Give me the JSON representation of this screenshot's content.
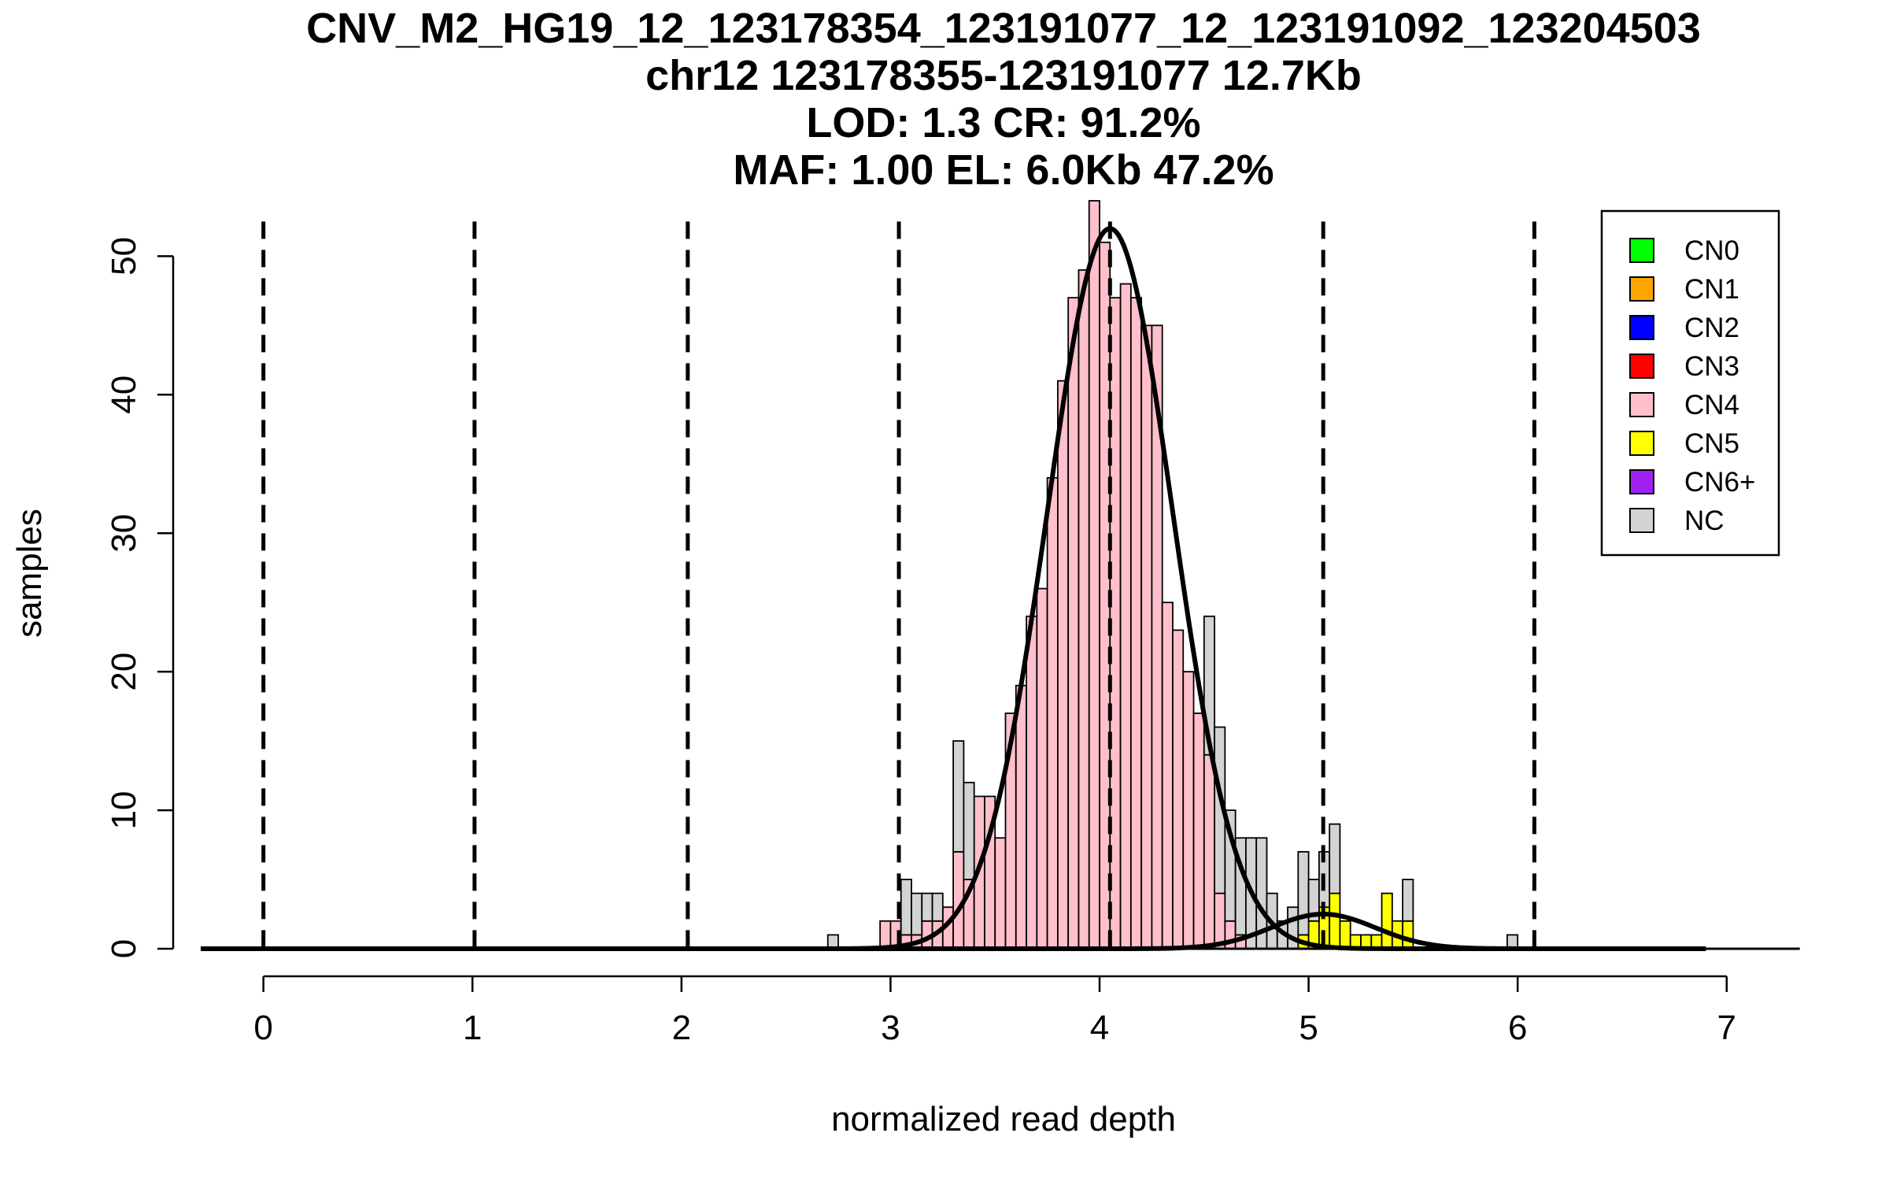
{
  "chart_data": {
    "type": "bar",
    "title_lines": [
      "CNV_M2_HG19_12_123178354_123191077_12_123191092_123204503",
      "chr12 123178355-123191077 12.7Kb",
      "LOD: 1.3 CR: 91.2%",
      "MAF: 1.00 EL: 6.0Kb 47.2%"
    ],
    "xlabel": "normalized read depth",
    "ylabel": "samples",
    "xlim": [
      -0.3,
      7.4
    ],
    "ylim": [
      0,
      54
    ],
    "xticks": [
      0,
      1,
      2,
      3,
      4,
      5,
      6,
      7
    ],
    "yticks": [
      0,
      10,
      20,
      30,
      40,
      50
    ],
    "bin_width": 0.05,
    "thresholds": [
      0.0,
      1.01,
      2.03,
      3.04,
      4.05,
      5.07,
      6.08
    ],
    "legend": {
      "position": "top-right",
      "entries": [
        {
          "label": "CN0",
          "color": "#00ff00"
        },
        {
          "label": "CN1",
          "color": "#ffa500"
        },
        {
          "label": "CN2",
          "color": "#0000ff"
        },
        {
          "label": "CN3",
          "color": "#ff0000"
        },
        {
          "label": "CN4",
          "color": "#ffc0cb"
        },
        {
          "label": "CN5",
          "color": "#ffff00"
        },
        {
          "label": "CN6+",
          "color": "#a020f0"
        },
        {
          "label": "NC",
          "color": "#d3d3d3"
        }
      ]
    },
    "series": [
      {
        "name": "CN4",
        "color": "#ffc0cb",
        "bins": [
          [
            2.95,
            2
          ],
          [
            3.0,
            2
          ],
          [
            3.05,
            1
          ],
          [
            3.1,
            1
          ],
          [
            3.15,
            2
          ],
          [
            3.2,
            2
          ],
          [
            3.25,
            3
          ],
          [
            3.3,
            7
          ],
          [
            3.35,
            5
          ],
          [
            3.4,
            11
          ],
          [
            3.45,
            11
          ],
          [
            3.5,
            8
          ],
          [
            3.55,
            17
          ],
          [
            3.6,
            19
          ],
          [
            3.65,
            24
          ],
          [
            3.7,
            26
          ],
          [
            3.75,
            34
          ],
          [
            3.8,
            41
          ],
          [
            3.85,
            47
          ],
          [
            3.9,
            49
          ],
          [
            3.95,
            54
          ],
          [
            4.0,
            51
          ],
          [
            4.05,
            47
          ],
          [
            4.1,
            48
          ],
          [
            4.15,
            47
          ],
          [
            4.2,
            45
          ],
          [
            4.25,
            45
          ],
          [
            4.3,
            25
          ],
          [
            4.35,
            23
          ],
          [
            4.4,
            20
          ],
          [
            4.45,
            17
          ],
          [
            4.5,
            14
          ],
          [
            4.55,
            4
          ],
          [
            4.6,
            2
          ],
          [
            4.65,
            1
          ]
        ]
      },
      {
        "name": "CN5",
        "color": "#ffff00",
        "bins": [
          [
            4.95,
            1
          ],
          [
            5.0,
            2
          ],
          [
            5.05,
            3
          ],
          [
            5.1,
            4
          ],
          [
            5.15,
            2
          ],
          [
            5.2,
            1
          ],
          [
            5.25,
            1
          ],
          [
            5.3,
            1
          ],
          [
            5.35,
            4
          ],
          [
            5.4,
            2
          ],
          [
            5.45,
            2
          ]
        ]
      },
      {
        "name": "NC",
        "color": "#d3d3d3",
        "bins": [
          [
            2.7,
            1
          ],
          [
            3.05,
            4
          ],
          [
            3.1,
            3
          ],
          [
            3.15,
            2
          ],
          [
            3.2,
            2
          ],
          [
            3.3,
            8
          ],
          [
            3.35,
            7
          ],
          [
            4.5,
            10
          ],
          [
            4.55,
            12
          ],
          [
            4.6,
            8
          ],
          [
            4.65,
            7
          ],
          [
            4.7,
            8
          ],
          [
            4.75,
            8
          ],
          [
            4.8,
            4
          ],
          [
            4.85,
            2
          ],
          [
            4.9,
            3
          ],
          [
            4.95,
            6
          ],
          [
            5.0,
            3
          ],
          [
            5.05,
            4
          ],
          [
            5.1,
            5
          ],
          [
            5.45,
            3
          ],
          [
            5.95,
            1
          ]
        ]
      }
    ],
    "fit_curves": [
      {
        "name": "CN4 fit",
        "mean": 4.05,
        "sd": 0.3,
        "peak": 52
      },
      {
        "name": "CN5 fit",
        "mean": 5.07,
        "sd": 0.25,
        "peak": 2.5
      }
    ]
  }
}
